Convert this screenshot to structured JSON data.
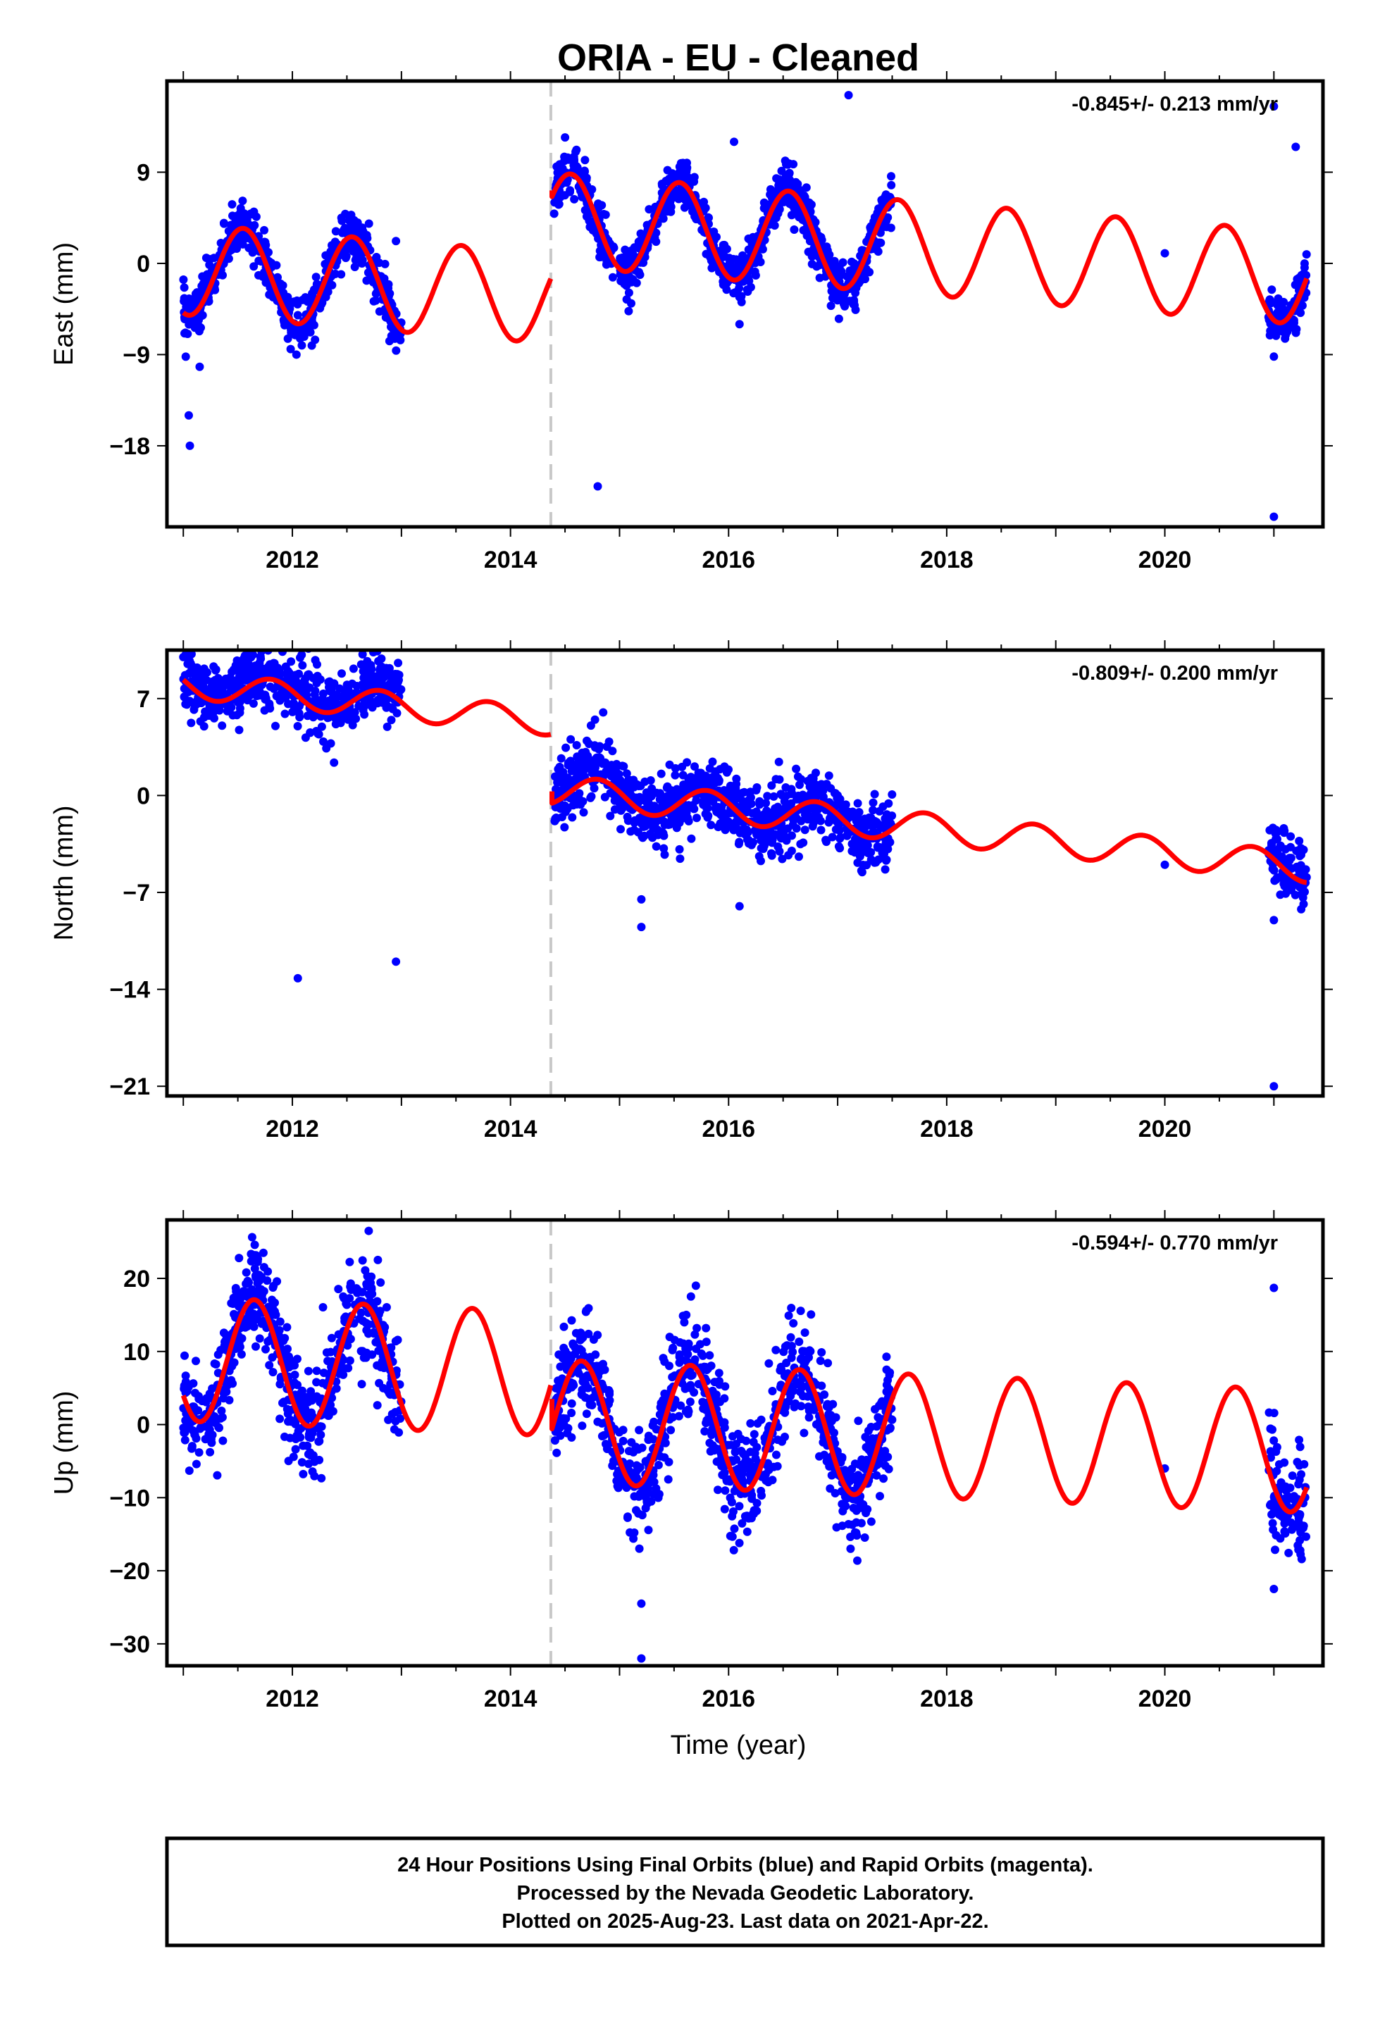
{
  "title": "ORIA  - EU - Cleaned",
  "colors": {
    "points": "#0000ff",
    "model": "#ff0000",
    "break_line": "#c8c8c8",
    "frame": "#000000"
  },
  "footer": {
    "line1": "24 Hour Positions Using Final Orbits (blue) and Rapid Orbits (magenta).",
    "line2": "Processed by the Nevada Geodetic Laboratory.",
    "line3": "Plotted on 2025-Aug-23. Last data on 2021-Apr-22."
  },
  "chart_data": [
    {
      "type": "scatter",
      "component": "East",
      "ylabel": "East (mm)",
      "rate_label": "-0.845+/- 0.213 mm/yr",
      "xlim": [
        2010.85,
        2021.45
      ],
      "ylim": [
        -26,
        18
      ],
      "xticks": [
        2012,
        2014,
        2016,
        2018,
        2020
      ],
      "yticks": [
        9,
        0,
        -9,
        -18
      ],
      "ytick_labels": [
        "9",
        "0",
        "−9",
        "−18"
      ],
      "break_year": 2014.37,
      "model": {
        "segments": [
          {
            "x": [
              2011.0,
              2014.37
            ],
            "offset": -4.8,
            "amp": 4.5,
            "phase_year": 2011.3
          },
          {
            "x": [
              2014.38,
              2021.3
            ],
            "offset": 3.0,
            "amp": 4.6,
            "phase_year": 2011.3
          }
        ],
        "rate": -0.845,
        "jump_start": 7.2
      },
      "data_spans": [
        [
          2011.0,
          2013.0
        ],
        [
          2014.4,
          2014.95
        ],
        [
          2015.0,
          2017.5
        ],
        [
          2020.95,
          2021.3
        ]
      ],
      "scatter_sigma": 1.2,
      "outliers": [
        {
          "x": 2011.05,
          "y": -15.0
        },
        {
          "x": 2011.06,
          "y": -18.0
        },
        {
          "x": 2011.15,
          "y": -10.2
        },
        {
          "x": 2012.95,
          "y": 2.2
        },
        {
          "x": 2014.8,
          "y": -22.0
        },
        {
          "x": 2016.05,
          "y": 12.0
        },
        {
          "x": 2016.1,
          "y": -6.0
        },
        {
          "x": 2017.1,
          "y": 16.6
        },
        {
          "x": 2020.0,
          "y": 1.0
        },
        {
          "x": 2021.0,
          "y": 15.5
        },
        {
          "x": 2021.0,
          "y": -9.2
        },
        {
          "x": 2021.0,
          "y": -25.0
        },
        {
          "x": 2021.2,
          "y": 11.5
        }
      ]
    },
    {
      "type": "scatter",
      "component": "North",
      "ylabel": "North (mm)",
      "rate_label": "-0.809+/- 0.200 mm/yr",
      "xlim": [
        2010.85,
        2021.45
      ],
      "ylim": [
        -21.7,
        10.5
      ],
      "xticks": [
        2012,
        2014,
        2016,
        2018,
        2020
      ],
      "yticks": [
        7,
        0,
        -7,
        -14,
        -21
      ],
      "ytick_labels": [
        "7",
        "0",
        "−7",
        "−14",
        "−21"
      ],
      "break_year": 2014.37,
      "model": {
        "segments": [
          {
            "x": [
              2011.0,
              2014.37
            ],
            "offset": 4.0,
            "amp": 1.0,
            "phase_year": 2011.55
          },
          {
            "x": [
              2014.38,
              2021.3
            ],
            "offset": -0.9,
            "amp": 1.1,
            "phase_year": 2011.55
          }
        ],
        "rate": -0.809,
        "jump_start": 0.3
      },
      "data_spans": [
        [
          2011.0,
          2013.0
        ],
        [
          2014.4,
          2014.95
        ],
        [
          2014.95,
          2017.5
        ],
        [
          2020.95,
          2021.3
        ]
      ],
      "span_offsets": [
        1.0,
        3.0,
        0.0,
        0.5
      ],
      "scatter_sigma": 1.2,
      "outliers": [
        {
          "x": 2011.0,
          "y": 10.0
        },
        {
          "x": 2012.05,
          "y": -13.2
        },
        {
          "x": 2012.95,
          "y": -12.0
        },
        {
          "x": 2014.85,
          "y": 6.0
        },
        {
          "x": 2015.2,
          "y": -9.5
        },
        {
          "x": 2015.2,
          "y": -7.5
        },
        {
          "x": 2016.1,
          "y": -8.0
        },
        {
          "x": 2020.0,
          "y": -5.0
        },
        {
          "x": 2021.0,
          "y": -21.0
        },
        {
          "x": 2021.0,
          "y": -9.0
        }
      ]
    },
    {
      "type": "scatter",
      "component": "Up",
      "ylabel": "Up (mm)",
      "rate_label": "-0.594+/- 0.770 mm/yr",
      "xlim": [
        2010.85,
        2021.45
      ],
      "ylim": [
        -33,
        28
      ],
      "xticks": [
        2012,
        2014,
        2016,
        2018,
        2020
      ],
      "yticks": [
        20,
        10,
        0,
        -10,
        -20,
        -30
      ],
      "ytick_labels": [
        "20",
        "10",
        "0",
        "−10",
        "−20",
        "−30"
      ],
      "break_year": 2014.37,
      "model": {
        "segments": [
          {
            "x": [
              2011.0,
              2014.37
            ],
            "offset": 6.0,
            "amp": 8.5,
            "phase_year": 2011.4
          },
          {
            "x": [
              2014.38,
              2021.3
            ],
            "offset": -0.5,
            "amp": 8.4,
            "phase_year": 2011.4
          }
        ],
        "rate": -0.594,
        "jump_start": 3.5
      },
      "data_spans": [
        [
          2011.0,
          2013.0
        ],
        [
          2014.4,
          2017.5
        ],
        [
          2020.95,
          2021.3
        ]
      ],
      "scatter_sigma": 3.6,
      "outliers": [
        {
          "x": 2015.2,
          "y": -32.0
        },
        {
          "x": 2015.2,
          "y": -24.5
        },
        {
          "x": 2020.0,
          "y": -6.0
        },
        {
          "x": 2021.0,
          "y": 18.7
        },
        {
          "x": 2021.0,
          "y": -22.5
        },
        {
          "x": 2012.7,
          "y": 26.5
        },
        {
          "x": 2015.7,
          "y": 19.0
        }
      ]
    }
  ],
  "xlabel": "Time (year)"
}
